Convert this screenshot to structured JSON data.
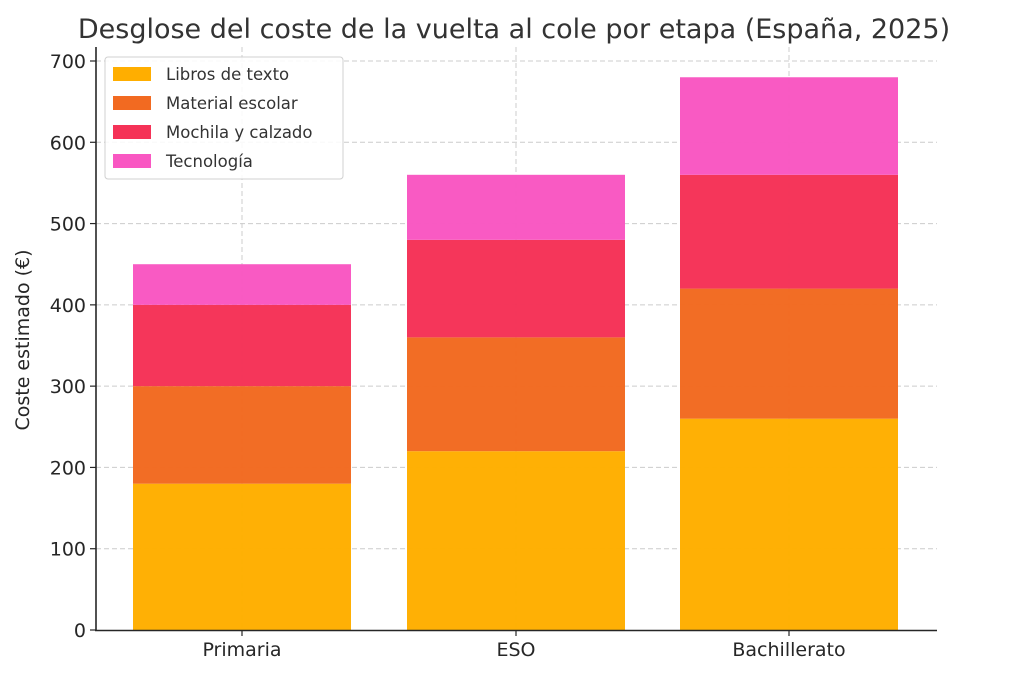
{
  "chart_data": {
    "type": "bar",
    "stacked": true,
    "title": "Desglose del coste de la vuelta al cole por etapa (España, 2025)",
    "xlabel": "",
    "ylabel": "Coste estimado (€)",
    "ylim": [
      0,
      700
    ],
    "yticks": [
      0,
      100,
      200,
      300,
      400,
      500,
      600,
      700
    ],
    "grid": true,
    "legend_position": "top-left",
    "categories": [
      "Primaria",
      "ESO",
      "Bachillerato"
    ],
    "series": [
      {
        "name": "Libros de texto",
        "color": "#ffae00",
        "values": [
          180,
          220,
          260
        ]
      },
      {
        "name": "Material escolar",
        "color": "#f26a21",
        "values": [
          120,
          140,
          160
        ]
      },
      {
        "name": "Mochila y calzado",
        "color": "#f53257",
        "values": [
          100,
          120,
          140
        ]
      },
      {
        "name": "Tecnología",
        "color": "#f957c2",
        "values": [
          50,
          80,
          120
        ]
      }
    ]
  }
}
